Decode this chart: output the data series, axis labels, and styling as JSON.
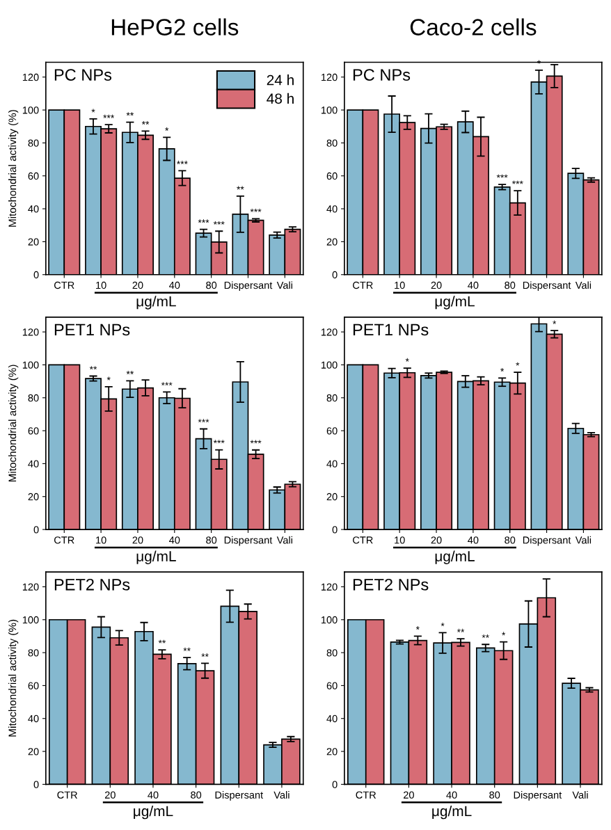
{
  "chart_data": [
    {
      "type": "bar",
      "title": "HePG2 cells",
      "ylabel": "Mitochondrial activity (%)",
      "xlabel": "μg/mL",
      "annotations": [
        "PC NPs"
      ],
      "categories": [
        "CTR",
        "10",
        "20",
        "40",
        "80",
        "Dispersant",
        "Vali"
      ],
      "ylim": [
        0,
        129
      ],
      "yticks": [
        0,
        20,
        40,
        60,
        80,
        100,
        120
      ],
      "legend": "top right",
      "grid": false,
      "series": [
        {
          "name": "24 h",
          "color": "#85b8cf",
          "values": [
            100,
            90,
            86.4,
            76.4,
            25.2,
            36.7,
            24
          ],
          "errors": [
            null,
            4.6,
            6.2,
            7,
            2.3,
            11,
            1.8
          ],
          "value_labels": [
            null,
            "*",
            "**",
            "*",
            "***",
            "**",
            null
          ]
        },
        {
          "name": "48 h",
          "color": "#d76c75",
          "values": [
            100,
            88.6,
            84.7,
            58.6,
            19.8,
            33,
            27.5
          ],
          "errors": [
            null,
            2.5,
            2.5,
            4.5,
            6.6,
            1,
            1.5
          ],
          "value_labels": [
            null,
            "***",
            "**",
            "***",
            "***",
            "***",
            null
          ]
        }
      ]
    },
    {
      "type": "bar",
      "title": "Caco-2 cells",
      "xlabel": "μg/mL",
      "annotations": [
        "PC NPs"
      ],
      "categories": [
        "CTR",
        "10",
        "20",
        "40",
        "80",
        "Dispersant",
        "Vali"
      ],
      "ylim": [
        0,
        129
      ],
      "yticks": [
        0,
        20,
        40,
        60,
        80,
        100,
        120
      ],
      "grid": false,
      "series": [
        {
          "color": "#85b8cf",
          "values": [
            100,
            97.5,
            88.8,
            92.8,
            53.2,
            117,
            61.5
          ],
          "errors": [
            null,
            11,
            8.9,
            6.5,
            1.6,
            7.2,
            3
          ],
          "value_labels": [
            null,
            null,
            null,
            null,
            "***",
            "*",
            null
          ]
        },
        {
          "color": "#d76c75",
          "values": [
            100,
            92.4,
            89.8,
            83.8,
            43.6,
            120.6,
            57.5
          ],
          "errors": [
            null,
            4.1,
            1.5,
            11.8,
            7.4,
            7,
            1.3
          ],
          "value_labels": [
            null,
            null,
            null,
            null,
            "***",
            null,
            null
          ]
        }
      ]
    },
    {
      "type": "bar",
      "ylabel": "Mitochondrial activity (%)",
      "xlabel": "μg/mL",
      "annotations": [
        "PET1 NPs"
      ],
      "categories": [
        "CTR",
        "10",
        "20",
        "40",
        "80",
        "Dispersant",
        "Vali"
      ],
      "ylim": [
        0,
        129
      ],
      "yticks": [
        0,
        20,
        40,
        60,
        80,
        100,
        120
      ],
      "grid": false,
      "series": [
        {
          "color": "#85b8cf",
          "values": [
            100,
            91.7,
            85.3,
            80,
            55.1,
            89.6,
            24
          ],
          "errors": [
            null,
            1.5,
            5,
            3.5,
            6,
            12.3,
            1.8
          ],
          "value_labels": [
            null,
            "**",
            "**",
            "***",
            "***",
            null,
            null
          ]
        },
        {
          "color": "#d76c75",
          "values": [
            100,
            79.3,
            86,
            79.7,
            42.6,
            45.7,
            27.5
          ],
          "errors": [
            null,
            7.4,
            4.8,
            5.8,
            5.8,
            2.6,
            1.5
          ],
          "value_labels": [
            null,
            "*",
            null,
            null,
            "***",
            "***",
            null
          ]
        }
      ]
    },
    {
      "type": "bar",
      "xlabel": "μg/mL",
      "annotations": [
        "PET1 NPs"
      ],
      "categories": [
        "CTR",
        "10",
        "20",
        "40",
        "80",
        "Dispersant",
        "Vali"
      ],
      "ylim": [
        0,
        129
      ],
      "yticks": [
        0,
        20,
        40,
        60,
        80,
        100,
        120
      ],
      "grid": false,
      "series": [
        {
          "color": "#85b8cf",
          "values": [
            100,
            95,
            93.5,
            89.9,
            89.5,
            124.9,
            61.4
          ],
          "errors": [
            null,
            2.8,
            1.5,
            3.5,
            2.5,
            4.7,
            3
          ],
          "value_labels": [
            null,
            null,
            null,
            null,
            "*",
            null,
            null
          ]
        },
        {
          "color": "#d76c75",
          "values": [
            100,
            95.2,
            95.5,
            90.3,
            88.9,
            118.6,
            57.6
          ],
          "errors": [
            null,
            2.8,
            0.7,
            2.4,
            6.6,
            2.2,
            1.2
          ],
          "value_labels": [
            null,
            "*",
            null,
            null,
            "*",
            "*",
            null
          ]
        }
      ]
    },
    {
      "type": "bar",
      "ylabel": "Mitochondrial activity (%)",
      "xlabel": "μg/mL",
      "annotations": [
        "PET2 NPs"
      ],
      "categories": [
        "CTR",
        "20",
        "40",
        "80",
        "Dispersant",
        "Vali"
      ],
      "ylim": [
        0,
        129
      ],
      "yticks": [
        0,
        20,
        40,
        60,
        80,
        100,
        120
      ],
      "grid": false,
      "series": [
        {
          "color": "#85b8cf",
          "values": [
            100,
            95.5,
            92.8,
            73.3,
            108.2,
            24
          ],
          "errors": [
            null,
            6.3,
            5.5,
            3.7,
            9.7,
            1.5
          ],
          "value_labels": [
            null,
            null,
            null,
            "**",
            null,
            null
          ]
        },
        {
          "color": "#d76c75",
          "values": [
            100,
            89,
            79,
            69,
            105,
            27.5
          ],
          "errors": [
            null,
            4.4,
            2.7,
            4.5,
            4.5,
            1.5
          ],
          "value_labels": [
            null,
            null,
            "**",
            "**",
            null,
            null
          ]
        }
      ]
    },
    {
      "type": "bar",
      "xlabel": "μg/mL",
      "annotations": [
        "PET2 NPs"
      ],
      "categories": [
        "CTR",
        "20",
        "40",
        "80",
        "Dispersant",
        "Vali"
      ],
      "ylim": [
        0,
        129
      ],
      "yticks": [
        0,
        20,
        40,
        60,
        80,
        100,
        120
      ],
      "grid": false,
      "series": [
        {
          "color": "#85b8cf",
          "values": [
            100,
            86.4,
            85.9,
            82.8,
            97.4,
            61.4
          ],
          "errors": [
            null,
            1.1,
            6.2,
            2.2,
            14,
            3
          ],
          "value_labels": [
            null,
            null,
            "*",
            "**",
            null,
            null
          ]
        },
        {
          "color": "#d76c75",
          "values": [
            100,
            87.4,
            86.2,
            81.2,
            113.3,
            57.4
          ],
          "errors": [
            null,
            2.6,
            2.2,
            5.3,
            11.5,
            1.3
          ],
          "value_labels": [
            null,
            "*",
            "**",
            "*",
            null,
            null
          ]
        }
      ]
    }
  ]
}
